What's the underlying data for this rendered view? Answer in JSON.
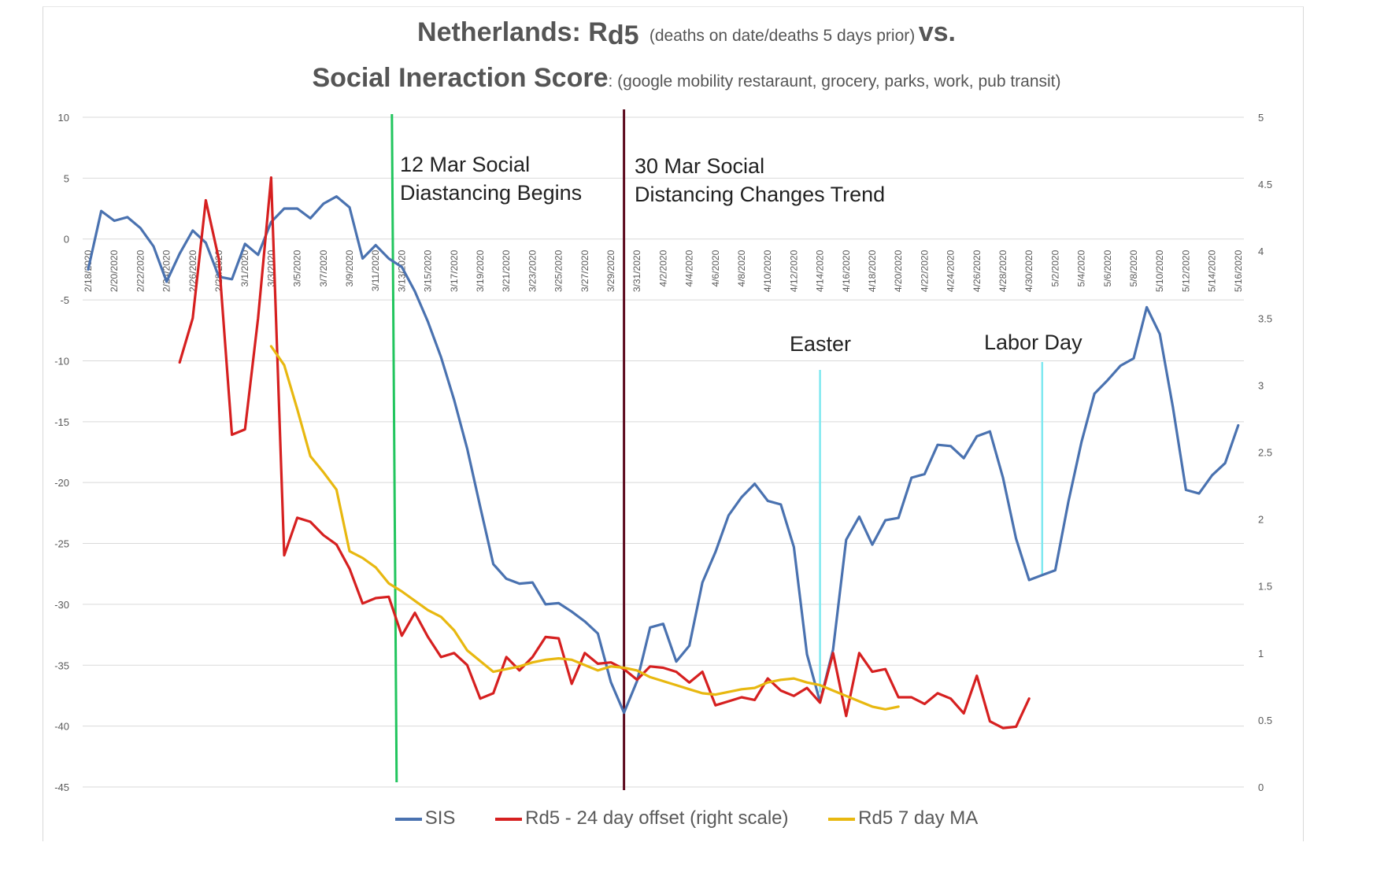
{
  "title": {
    "line1_main": "Netherlands:  R",
    "line1_sub": "d5",
    "line1_paren": "(deaths on date/deaths 5 days prior)",
    "line1_vs": "vs.",
    "line2_main": "Social Ineraction Score",
    "line2_paren": ": (google mobility restaraunt, grocery, parks, work, pub transit)"
  },
  "annotations": [
    {
      "text1": "12 Mar Social",
      "text2": "Diastancing Begins",
      "color": "#22c55e"
    },
    {
      "text1": "30 Mar Social",
      "text2": "Distancing Changes Trend",
      "color": "#5c0a1e"
    },
    {
      "text": "Easter",
      "color": "#7fe8f0"
    },
    {
      "text": "Labor Day",
      "color": "#7fe8f0"
    }
  ],
  "legend": [
    {
      "label": "SIS",
      "color": "#4a72b0"
    },
    {
      "label": "Rd5 - 24 day offset (right scale)",
      "color": "#d62020"
    },
    {
      "label": "Rd5 7 day MA",
      "color": "#e8b810"
    }
  ],
  "chart_data": {
    "type": "line",
    "x_tick_labels": [
      "2/18/2020",
      "2/20/2020",
      "2/22/2020",
      "2/24/2020",
      "2/26/2020",
      "2/28/2020",
      "3/1/2020",
      "3/3/2020",
      "3/5/2020",
      "3/7/2020",
      "3/9/2020",
      "3/11/2020",
      "3/13/2020",
      "3/15/2020",
      "3/17/2020",
      "3/19/2020",
      "3/21/2020",
      "3/23/2020",
      "3/25/2020",
      "3/27/2020",
      "3/29/2020",
      "3/31/2020",
      "4/2/2020",
      "4/4/2020",
      "4/6/2020",
      "4/8/2020",
      "4/10/2020",
      "4/12/2020",
      "4/14/2020",
      "4/16/2020",
      "4/18/2020",
      "4/20/2020",
      "4/22/2020",
      "4/24/2020",
      "4/26/2020",
      "4/28/2020",
      "4/30/2020",
      "5/2/2020",
      "5/4/2020",
      "5/6/2020",
      "5/8/2020",
      "5/10/2020",
      "5/12/2020",
      "5/14/2020",
      "5/16/2020"
    ],
    "y_left": {
      "ticks": [
        10,
        5,
        0,
        -5,
        -10,
        -15,
        -20,
        -25,
        -30,
        -35,
        -40,
        -45
      ],
      "range": [
        -45,
        10
      ]
    },
    "y_right": {
      "ticks": [
        "5",
        "4.5",
        "4",
        "3.5",
        "3",
        "2.5",
        "2",
        "1.5",
        "1",
        "0.5",
        "0"
      ],
      "range": [
        0,
        5
      ]
    },
    "series": [
      {
        "name": "SIS",
        "axis": "left",
        "start_day": 0,
        "values": [
          -2.5,
          2.3,
          1.5,
          1.8,
          0.9,
          -0.6,
          -3.5,
          -1.2,
          0.7,
          -0.3,
          -3.1,
          -3.3,
          -0.4,
          -1.3,
          1.4,
          2.5,
          2.5,
          1.7,
          2.9,
          3.5,
          2.6,
          -1.6,
          -0.5,
          -1.6,
          -2.3,
          -4.3,
          -6.8,
          -9.7,
          -13.2,
          -17.2,
          -22,
          -26.7,
          -27.9,
          -28.3,
          -28.2,
          -30,
          -29.9,
          -30.6,
          -31.4,
          -32.4,
          -36.4,
          -38.9,
          -36.3,
          -31.9,
          -31.6,
          -34.7,
          -33.4,
          -28.2,
          -25.7,
          -22.7,
          -21.2,
          -20.1,
          -21.5,
          -21.8,
          -25.3,
          -34.1,
          -38,
          -33.7,
          -24.7,
          -22.8,
          -25.1,
          -23.1,
          -22.9,
          -19.6,
          -19.3,
          -16.9,
          -17,
          -18,
          -16.2,
          -15.8,
          -19.6,
          -24.6,
          -28,
          -27.6,
          -27.2,
          -21.6,
          -16.7,
          -12.7,
          -11.6,
          -10.4,
          -9.8,
          -5.6,
          -7.8,
          -13.8,
          -20.6,
          -20.9,
          -19.4,
          -18.4,
          -15.3
        ]
      },
      {
        "name": "Rd5 - 24 day offset (right scale)",
        "axis": "right",
        "start_day": 7,
        "values": [
          3.17,
          3.5,
          4.38,
          3.94,
          2.63,
          2.67,
          3.5,
          4.55,
          1.73,
          2.01,
          1.98,
          1.88,
          1.81,
          1.63,
          1.37,
          1.41,
          1.42,
          1.13,
          1.3,
          1.12,
          0.97,
          1.0,
          0.91,
          0.66,
          0.7,
          0.97,
          0.87,
          0.97,
          1.12,
          1.11,
          0.77,
          1.0,
          0.92,
          0.93,
          0.88,
          0.8,
          0.9,
          0.89,
          0.86,
          0.78,
          0.86,
          0.61,
          0.64,
          0.67,
          0.65,
          0.81,
          0.72,
          0.68,
          0.74,
          0.63,
          1.0,
          0.53,
          1.0,
          0.86,
          0.88,
          0.67,
          0.67,
          0.62,
          0.7,
          0.66,
          0.55,
          0.83,
          0.49,
          0.44,
          0.45,
          0.66
        ]
      },
      {
        "name": "Rd5 7 day MA",
        "axis": "right",
        "start_day": 14,
        "values": [
          3.29,
          3.15,
          2.82,
          2.47,
          2.35,
          2.22,
          1.76,
          1.71,
          1.64,
          1.52,
          1.46,
          1.39,
          1.32,
          1.27,
          1.17,
          1.02,
          0.94,
          0.86,
          0.88,
          0.9,
          0.93,
          0.95,
          0.96,
          0.95,
          0.91,
          0.87,
          0.9,
          0.89,
          0.87,
          0.82,
          0.79,
          0.76,
          0.73,
          0.7,
          0.69,
          0.71,
          0.73,
          0.74,
          0.78,
          0.8,
          0.81,
          0.78,
          0.76,
          0.72,
          0.68,
          0.64,
          0.6,
          0.58,
          0.6
        ]
      }
    ],
    "events": [
      {
        "label": "12 Mar Social Diastancing Begins",
        "day": 23
      },
      {
        "label": "30 Mar Social Distancing Changes Trend",
        "day": 41
      },
      {
        "label": "Easter",
        "day": 56
      },
      {
        "label": "Labor Day",
        "day": 73
      }
    ]
  }
}
